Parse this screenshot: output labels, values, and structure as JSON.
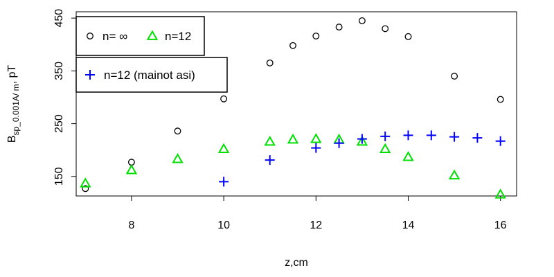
{
  "chart_data": {
    "type": "scatter",
    "xlabel": "z,cm",
    "ylabel_main": "B",
    "ylabel_sub": "sp_0.001A/ m",
    "ylabel_unit": ", pT",
    "xlim": [
      6.8,
      16.35
    ],
    "ylim": [
      113,
      462
    ],
    "xticks": [
      8,
      10,
      12,
      14,
      16
    ],
    "yticks": [
      150,
      250,
      350,
      450
    ],
    "grid": false,
    "series": [
      {
        "name": "n= ∞",
        "marker": "circle",
        "color": "#000000",
        "x": [
          7,
          8,
          9,
          10,
          11,
          11.5,
          12,
          12.5,
          13,
          13.5,
          14,
          15,
          16
        ],
        "y": [
          127,
          177,
          236,
          297,
          365,
          398,
          416,
          433,
          445,
          430,
          415,
          340,
          296
        ]
      },
      {
        "name": "n=12",
        "marker": "triangle",
        "color": "#00e000",
        "x": [
          7,
          8,
          9,
          10,
          11,
          11.5,
          12,
          12.5,
          13,
          13.5,
          14,
          15,
          16
        ],
        "y": [
          137,
          162,
          183,
          202,
          216,
          220,
          221,
          220,
          216,
          202,
          187,
          152,
          116
        ]
      },
      {
        "name": "n=12 (mainot asi)",
        "marker": "plus",
        "color": "#0000ff",
        "x": [
          10,
          11,
          12,
          12.5,
          13,
          13.5,
          14,
          14.5,
          15,
          15.5,
          16
        ],
        "y": [
          140,
          181,
          204,
          213,
          221,
          226,
          228,
          228,
          225,
          223,
          217
        ]
      }
    ],
    "legends": [
      {
        "entries": [
          0,
          1
        ],
        "placement": "top-left"
      },
      {
        "entries": [
          2
        ],
        "placement": "upper-left"
      }
    ]
  }
}
